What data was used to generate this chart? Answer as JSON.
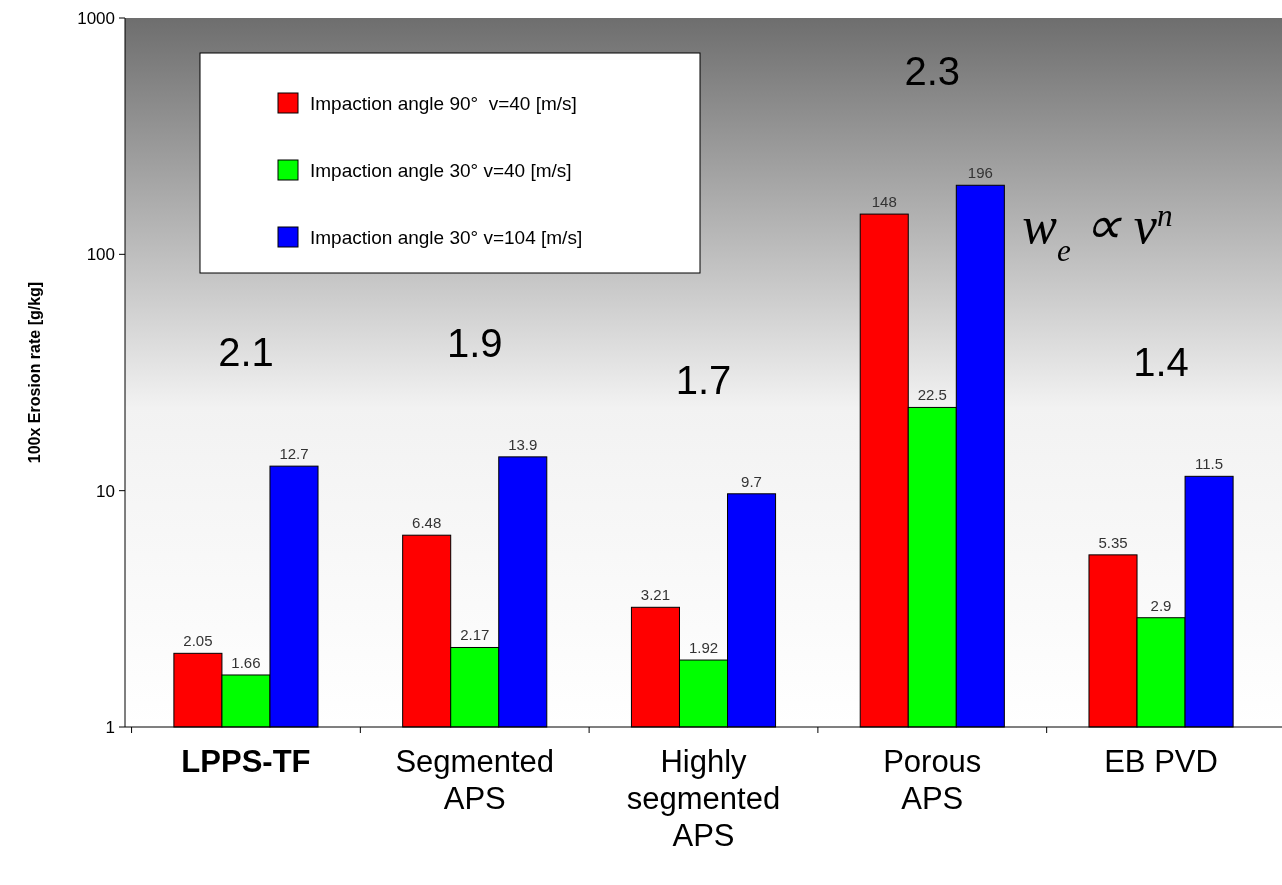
{
  "chart_data": {
    "type": "bar",
    "ylabel": "100x Erosion rate [g/kg]",
    "categories": [
      "LPPS-TF",
      "Segmented APS",
      "Highly segmented APS",
      "Porous APS",
      "EB PVD"
    ],
    "series": [
      {
        "name": "Impaction angle 90°  v=40 [m/s]",
        "color": "#ff0000",
        "values": [
          2.05,
          6.48,
          3.21,
          148,
          5.35
        ]
      },
      {
        "name": "Impaction angle 30° v=40 [m/s]",
        "color": "#00ff00",
        "values": [
          1.66,
          2.17,
          1.92,
          22.5,
          2.9
        ]
      },
      {
        "name": "Impaction angle 30° v=104 [m/s]",
        "color": "#0000ff",
        "values": [
          12.7,
          13.9,
          9.7,
          196,
          11.5
        ]
      }
    ],
    "log": true,
    "ylim": [
      1,
      1000
    ],
    "yticks": [
      1,
      10,
      100,
      1000
    ],
    "grid": false,
    "legend": "top left",
    "data_labels": true,
    "annotations": [
      "2.1",
      "1.9",
      "1.7",
      "2.3",
      "1.4",
      "w$_{e}$ ∝ v$^{n}$"
    ]
  }
}
